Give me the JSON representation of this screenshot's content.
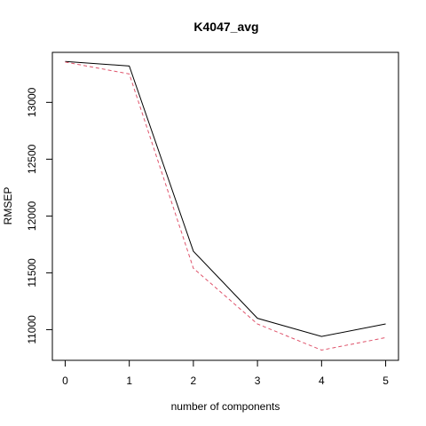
{
  "chart_data": {
    "type": "line",
    "title": "K4047_avg",
    "xlabel": "number of components",
    "ylabel": "RMSEP",
    "x": [
      0,
      1,
      2,
      3,
      4,
      5
    ],
    "xlim": [
      -0.2,
      5.2
    ],
    "ylim": [
      10730,
      13440
    ],
    "xticks": [
      0,
      1,
      2,
      3,
      4,
      5
    ],
    "yticks": [
      11000,
      11500,
      12000,
      12500,
      13000
    ],
    "grid": false,
    "series": [
      {
        "values": [
          13360,
          13320,
          11690,
          11100,
          10940,
          11050
        ],
        "color": "#000000",
        "dash": "solid"
      },
      {
        "values": [
          13355,
          13250,
          11540,
          11050,
          10820,
          10930
        ],
        "color": "#df536b",
        "dash": "dashed"
      }
    ]
  }
}
